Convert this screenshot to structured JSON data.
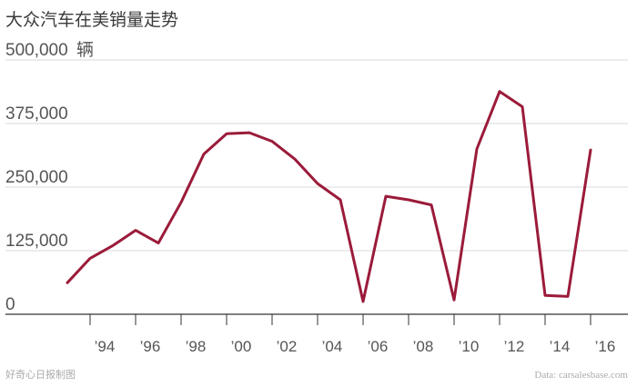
{
  "chart_data": {
    "type": "line",
    "title": "大众汽车在美销量走势",
    "y_unit": "辆",
    "ylim": [
      0,
      500000
    ],
    "yticks": [
      0,
      125000,
      250000,
      375000,
      500000
    ],
    "ytick_labels": [
      "0",
      "125,000",
      "250,000",
      "375,000",
      "500,000"
    ],
    "x_ticks": [
      1994,
      1996,
      1998,
      2000,
      2002,
      2004,
      2006,
      2008,
      2010,
      2012,
      2014,
      2016
    ],
    "x_tick_labels": [
      "’94",
      "’96",
      "’98",
      "’00",
      "’02",
      "’04",
      "’06",
      "’08",
      "’10",
      "’12",
      "’14",
      "’16"
    ],
    "xlim": [
      1991,
      2016.5
    ],
    "grid": true,
    "line_color": "#9b1b3a",
    "series": [
      {
        "x": [
          1993,
          1994,
          1995,
          1996,
          1997,
          1998,
          1999,
          2000,
          2001,
          2002,
          2003,
          2004,
          2005,
          2006,
          2007,
          2008,
          2009,
          2010,
          2011,
          2012,
          2013,
          2014,
          2015,
          2016
        ],
        "values": [
          62000,
          110000,
          135000,
          165000,
          140000,
          220000,
          315000,
          355000,
          357000,
          340000,
          305000,
          257000,
          225000,
          25000,
          232000,
          225000,
          215000,
          28000,
          325000,
          438000,
          408000,
          37000,
          35000,
          323000
        ]
      }
    ]
  },
  "footer": {
    "left": "好奇心日报制图",
    "right": "Data: carsalesbase.com"
  }
}
